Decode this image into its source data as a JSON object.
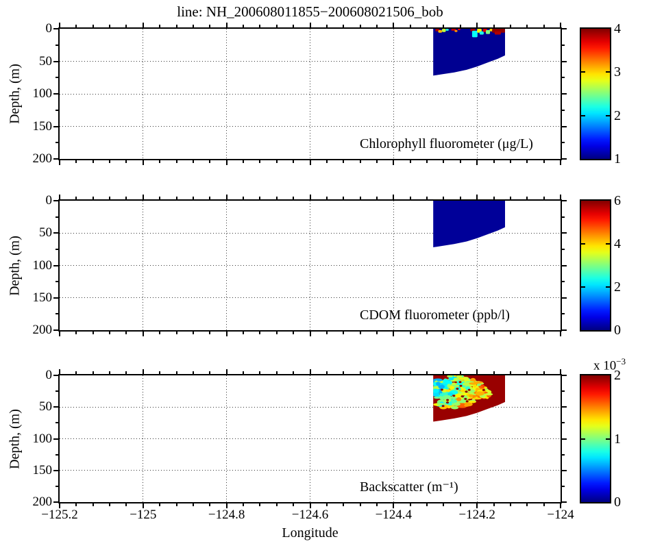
{
  "title": "line: NH_200608011855−200608021506_bob",
  "axes": {
    "xlabel": "Longitude",
    "ylabel": "Depth, (m)",
    "xlim": [
      -125.2,
      -124
    ],
    "x_major_ticks": [
      -125.2,
      -125,
      -124.8,
      -124.6,
      -124.4,
      -124.2,
      -124
    ],
    "x_tick_labels": [
      "−125.2",
      "−125",
      "−124.8",
      "−124.6",
      "−124.4",
      "−124.2",
      "−124"
    ],
    "x_minor_step": 0.04,
    "ylim": [
      0,
      200
    ],
    "y_major_ticks": [
      0,
      50,
      100,
      150,
      200
    ],
    "y_tick_labels": [
      "0",
      "50",
      "100",
      "150",
      "200"
    ],
    "y_minor_step": 25,
    "grid_style": "dotted"
  },
  "colormap": "jet",
  "chart_data": [
    {
      "type": "heatmap",
      "label": "Chlorophyll fluorometer (μg/L)",
      "clim": [
        1,
        4
      ],
      "colorbar_ticks": [
        1,
        2,
        3,
        4
      ],
      "colorbar_tick_labels": [
        "1",
        "2",
        "3",
        "4"
      ],
      "colorbar_exponent": "",
      "swath": {
        "outline": [
          [
            -124.305,
            0
          ],
          [
            -124.133,
            0
          ],
          [
            -124.133,
            41
          ],
          [
            -124.15,
            46
          ],
          [
            -124.175,
            52
          ],
          [
            -124.2,
            58
          ],
          [
            -124.225,
            63
          ],
          [
            -124.255,
            67
          ],
          [
            -124.285,
            70
          ],
          [
            -124.305,
            72
          ]
        ],
        "base_value": 1.05,
        "patches": [
          [
            -124.3,
            -124.29,
            0,
            4,
            3.9
          ],
          [
            -124.293,
            -124.284,
            2,
            6,
            3.1
          ],
          [
            -124.284,
            -124.275,
            0,
            5,
            2.7
          ],
          [
            -124.275,
            -124.268,
            0,
            3,
            2.2
          ],
          [
            -124.262,
            -124.25,
            0,
            3,
            3.8
          ],
          [
            -124.254,
            -124.247,
            2,
            5,
            3.2
          ],
          [
            -124.246,
            -124.24,
            0,
            2,
            3.6
          ],
          [
            -124.216,
            -124.204,
            0,
            4,
            3.9
          ],
          [
            -124.212,
            -124.199,
            3,
            13,
            2.15
          ],
          [
            -124.2,
            -124.189,
            0,
            6,
            2.9
          ],
          [
            -124.194,
            -124.184,
            4,
            9,
            2.2
          ],
          [
            -124.186,
            -124.176,
            0,
            5,
            3.7
          ],
          [
            -124.179,
            -124.169,
            2,
            8,
            2.5
          ],
          [
            -124.17,
            -124.162,
            0,
            4,
            3.0
          ],
          [
            -124.164,
            -124.133,
            0,
            6,
            3.95
          ],
          [
            -124.158,
            -124.143,
            4,
            9,
            3.85
          ]
        ]
      }
    },
    {
      "type": "heatmap",
      "label": "CDOM fluorometer (ppb/l)",
      "clim": [
        0,
        6
      ],
      "colorbar_ticks": [
        0,
        2,
        4,
        6
      ],
      "colorbar_tick_labels": [
        "0",
        "2",
        "4",
        "6"
      ],
      "colorbar_exponent": "",
      "swath": {
        "outline": [
          [
            -124.305,
            0
          ],
          [
            -124.133,
            0
          ],
          [
            -124.133,
            41
          ],
          [
            -124.15,
            46
          ],
          [
            -124.175,
            52
          ],
          [
            -124.2,
            58
          ],
          [
            -124.225,
            63
          ],
          [
            -124.255,
            67
          ],
          [
            -124.285,
            70
          ],
          [
            -124.305,
            72
          ]
        ],
        "base_value": 0.15,
        "patches": []
      }
    },
    {
      "type": "heatmap",
      "label": "Backscatter (m⁻¹)",
      "clim": [
        0,
        0.002
      ],
      "colorbar_ticks": [
        0,
        0.001,
        0.002
      ],
      "colorbar_tick_labels": [
        "0",
        "1",
        "2"
      ],
      "colorbar_exponent": "x 10⁻³",
      "swath": {
        "outline": [
          [
            -124.305,
            0
          ],
          [
            -124.133,
            0
          ],
          [
            -124.133,
            42
          ],
          [
            -124.15,
            47
          ],
          [
            -124.175,
            53
          ],
          [
            -124.2,
            59
          ],
          [
            -124.225,
            64
          ],
          [
            -124.255,
            68
          ],
          [
            -124.285,
            71
          ],
          [
            -124.305,
            73
          ]
        ],
        "base_value": 0.00195,
        "patches": [
          [
            -124.272,
            -124.258,
            0,
            3,
            0.0011
          ],
          [
            -124.256,
            -124.248,
            0,
            2,
            0.0013
          ],
          [
            -124.243,
            -124.236,
            0,
            3,
            0.00115
          ]
        ],
        "mottle": {
          "seed": 9,
          "count": 300,
          "region": [
            [
              -124.3,
              2
            ],
            [
              -124.268,
              1
            ],
            [
              -124.24,
              2
            ],
            [
              -124.213,
              6
            ],
            [
              -124.193,
              12
            ],
            [
              -124.174,
              22
            ],
            [
              -124.168,
              32
            ],
            [
              -124.196,
              42
            ],
            [
              -124.232,
              50
            ],
            [
              -124.268,
              52
            ],
            [
              -124.296,
              47
            ],
            [
              -124.302,
              28
            ]
          ],
          "t_span": [
            0.3,
            0.93
          ],
          "speck_count": 18,
          "speck_value": 0.00198
        }
      }
    }
  ]
}
